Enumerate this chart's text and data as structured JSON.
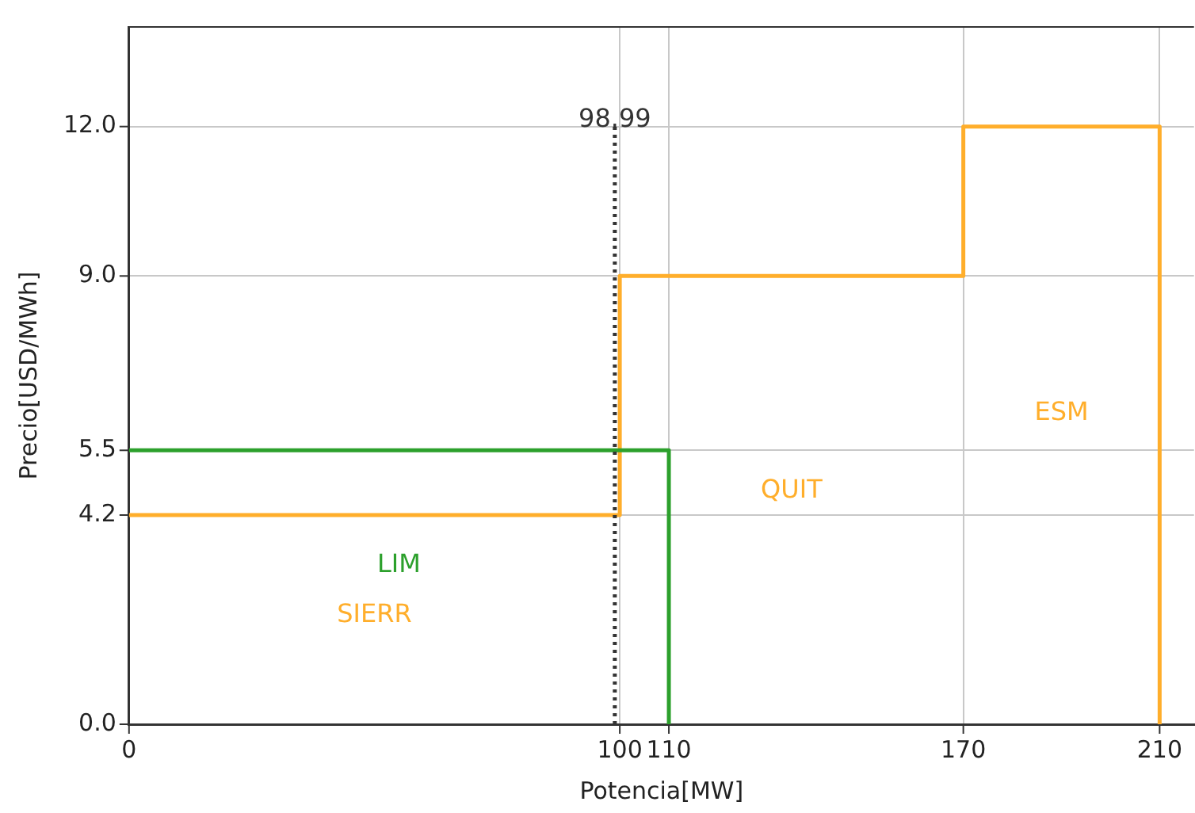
{
  "chart_data": {
    "type": "line",
    "xlabel": "Potencia[MW]",
    "ylabel": "Precio[USD/MWh]",
    "series": [
      {
        "name": "LIM",
        "color": "#2ca02c",
        "x": [
          0,
          110,
          110
        ],
        "values": [
          5.5,
          5.5,
          0
        ]
      },
      {
        "color": "#ffae2b",
        "x": [
          0,
          100,
          100,
          170,
          170,
          210,
          210
        ],
        "values": [
          4.2,
          4.2,
          9,
          9,
          12,
          12,
          0
        ]
      }
    ],
    "annotations": [
      "SIERR",
      "QUIT",
      "ESM"
    ],
    "xlim": [
      0,
      217
    ],
    "xticks": [
      0,
      100,
      110,
      170,
      210
    ],
    "ylim": [
      0,
      14
    ],
    "yticks": [
      {
        "value": 0,
        "label": "0.0"
      },
      {
        "value": 4.2,
        "label": "4.2"
      },
      {
        "value": 5.5,
        "label": "5.5"
      },
      {
        "value": 9,
        "label": "9.0"
      },
      {
        "value": 12,
        "label": "12.0"
      }
    ],
    "ref_lines": [
      {
        "axis": "x",
        "value": 98.99,
        "label": "98.99",
        "color": "#333333",
        "line_style": "dotted"
      }
    ],
    "grid": true,
    "legend": false,
    "marker": "none",
    "line_style": "solid"
  }
}
